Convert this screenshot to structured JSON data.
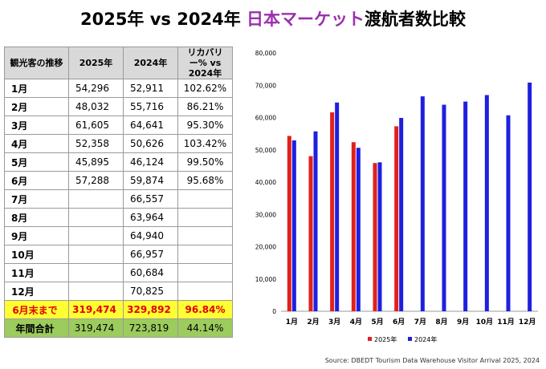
{
  "title": {
    "part1": "2025年 vs 2024年 ",
    "accent": "日本マーケット",
    "part2": "渡航者数比較"
  },
  "table": {
    "headers": {
      "col1": "観光客の推移",
      "col2": "2025年",
      "col3": "2024年",
      "col4_line1": "リカバリー% vs",
      "col4_line2": "2024年"
    },
    "rows": [
      {
        "month": "1月",
        "y2025": "54,296",
        "y2024": "52,911",
        "recovery": "102.62%"
      },
      {
        "month": "2月",
        "y2025": "48,032",
        "y2024": "55,716",
        "recovery": "86.21%"
      },
      {
        "month": "3月",
        "y2025": "61,605",
        "y2024": "64,641",
        "recovery": "95.30%"
      },
      {
        "month": "4月",
        "y2025": "52,358",
        "y2024": "50,626",
        "recovery": "103.42%"
      },
      {
        "month": "5月",
        "y2025": "45,895",
        "y2024": "46,124",
        "recovery": "99.50%"
      },
      {
        "month": "6月",
        "y2025": "57,288",
        "y2024": "59,874",
        "recovery": "95.68%"
      },
      {
        "month": "7月",
        "y2025": "",
        "y2024": "66,557",
        "recovery": ""
      },
      {
        "month": "8月",
        "y2025": "",
        "y2024": "63,964",
        "recovery": ""
      },
      {
        "month": "9月",
        "y2025": "",
        "y2024": "64,940",
        "recovery": ""
      },
      {
        "month": "10月",
        "y2025": "",
        "y2024": "66,957",
        "recovery": ""
      },
      {
        "month": "11月",
        "y2025": "",
        "y2024": "60,684",
        "recovery": ""
      },
      {
        "month": "12月",
        "y2025": "",
        "y2024": "70,825",
        "recovery": ""
      }
    ],
    "ytd": {
      "label": "6月末まで",
      "y2025": "319,474",
      "y2024": "329,892",
      "recovery": "96.84%"
    },
    "total": {
      "label": "年間合計",
      "y2025": "319,474",
      "y2024": "723,819",
      "recovery": "44.14%"
    }
  },
  "chart_data": {
    "type": "bar",
    "categories": [
      "1月",
      "2月",
      "3月",
      "4月",
      "5月",
      "6月",
      "7月",
      "8月",
      "9月",
      "10月",
      "11月",
      "12月"
    ],
    "series": [
      {
        "name": "2025年",
        "color": "#e0201c",
        "values": [
          54296,
          48032,
          61605,
          52358,
          45895,
          57288,
          null,
          null,
          null,
          null,
          null,
          null
        ]
      },
      {
        "name": "2024年",
        "color": "#1f1fe0",
        "values": [
          52911,
          55716,
          64641,
          50626,
          46124,
          59874,
          66557,
          63964,
          64940,
          66957,
          60684,
          70825
        ]
      }
    ],
    "ylim": [
      0,
      80000
    ],
    "yticks": [
      0,
      10000,
      20000,
      30000,
      40000,
      50000,
      60000,
      70000,
      80000
    ],
    "ytick_labels": [
      "0",
      "10,000",
      "20,000",
      "30,000",
      "40,000",
      "50,000",
      "60,000",
      "70,000",
      "80,000"
    ],
    "grid": false,
    "legend_position": "bottom"
  },
  "source": "Source: DBEDT Tourism Data Warehouse Visitor Arrival 2025, 2024"
}
